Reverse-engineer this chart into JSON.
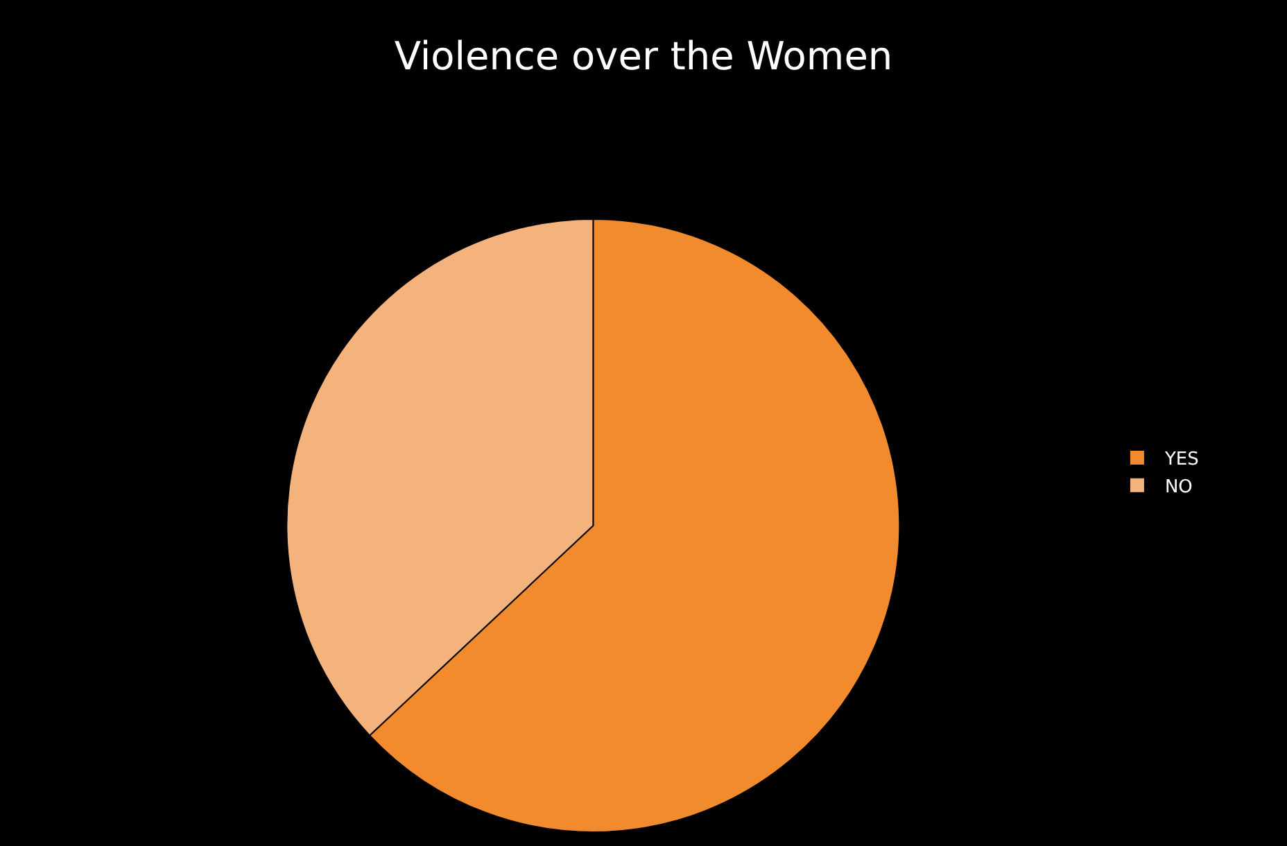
{
  "chart_data": {
    "type": "pie",
    "title": "Violence over the Women",
    "categories": [
      "YES",
      "NO"
    ],
    "values": [
      63,
      37
    ],
    "colors": [
      "#f28a2e",
      "#f4b27c"
    ],
    "legend": "right"
  }
}
